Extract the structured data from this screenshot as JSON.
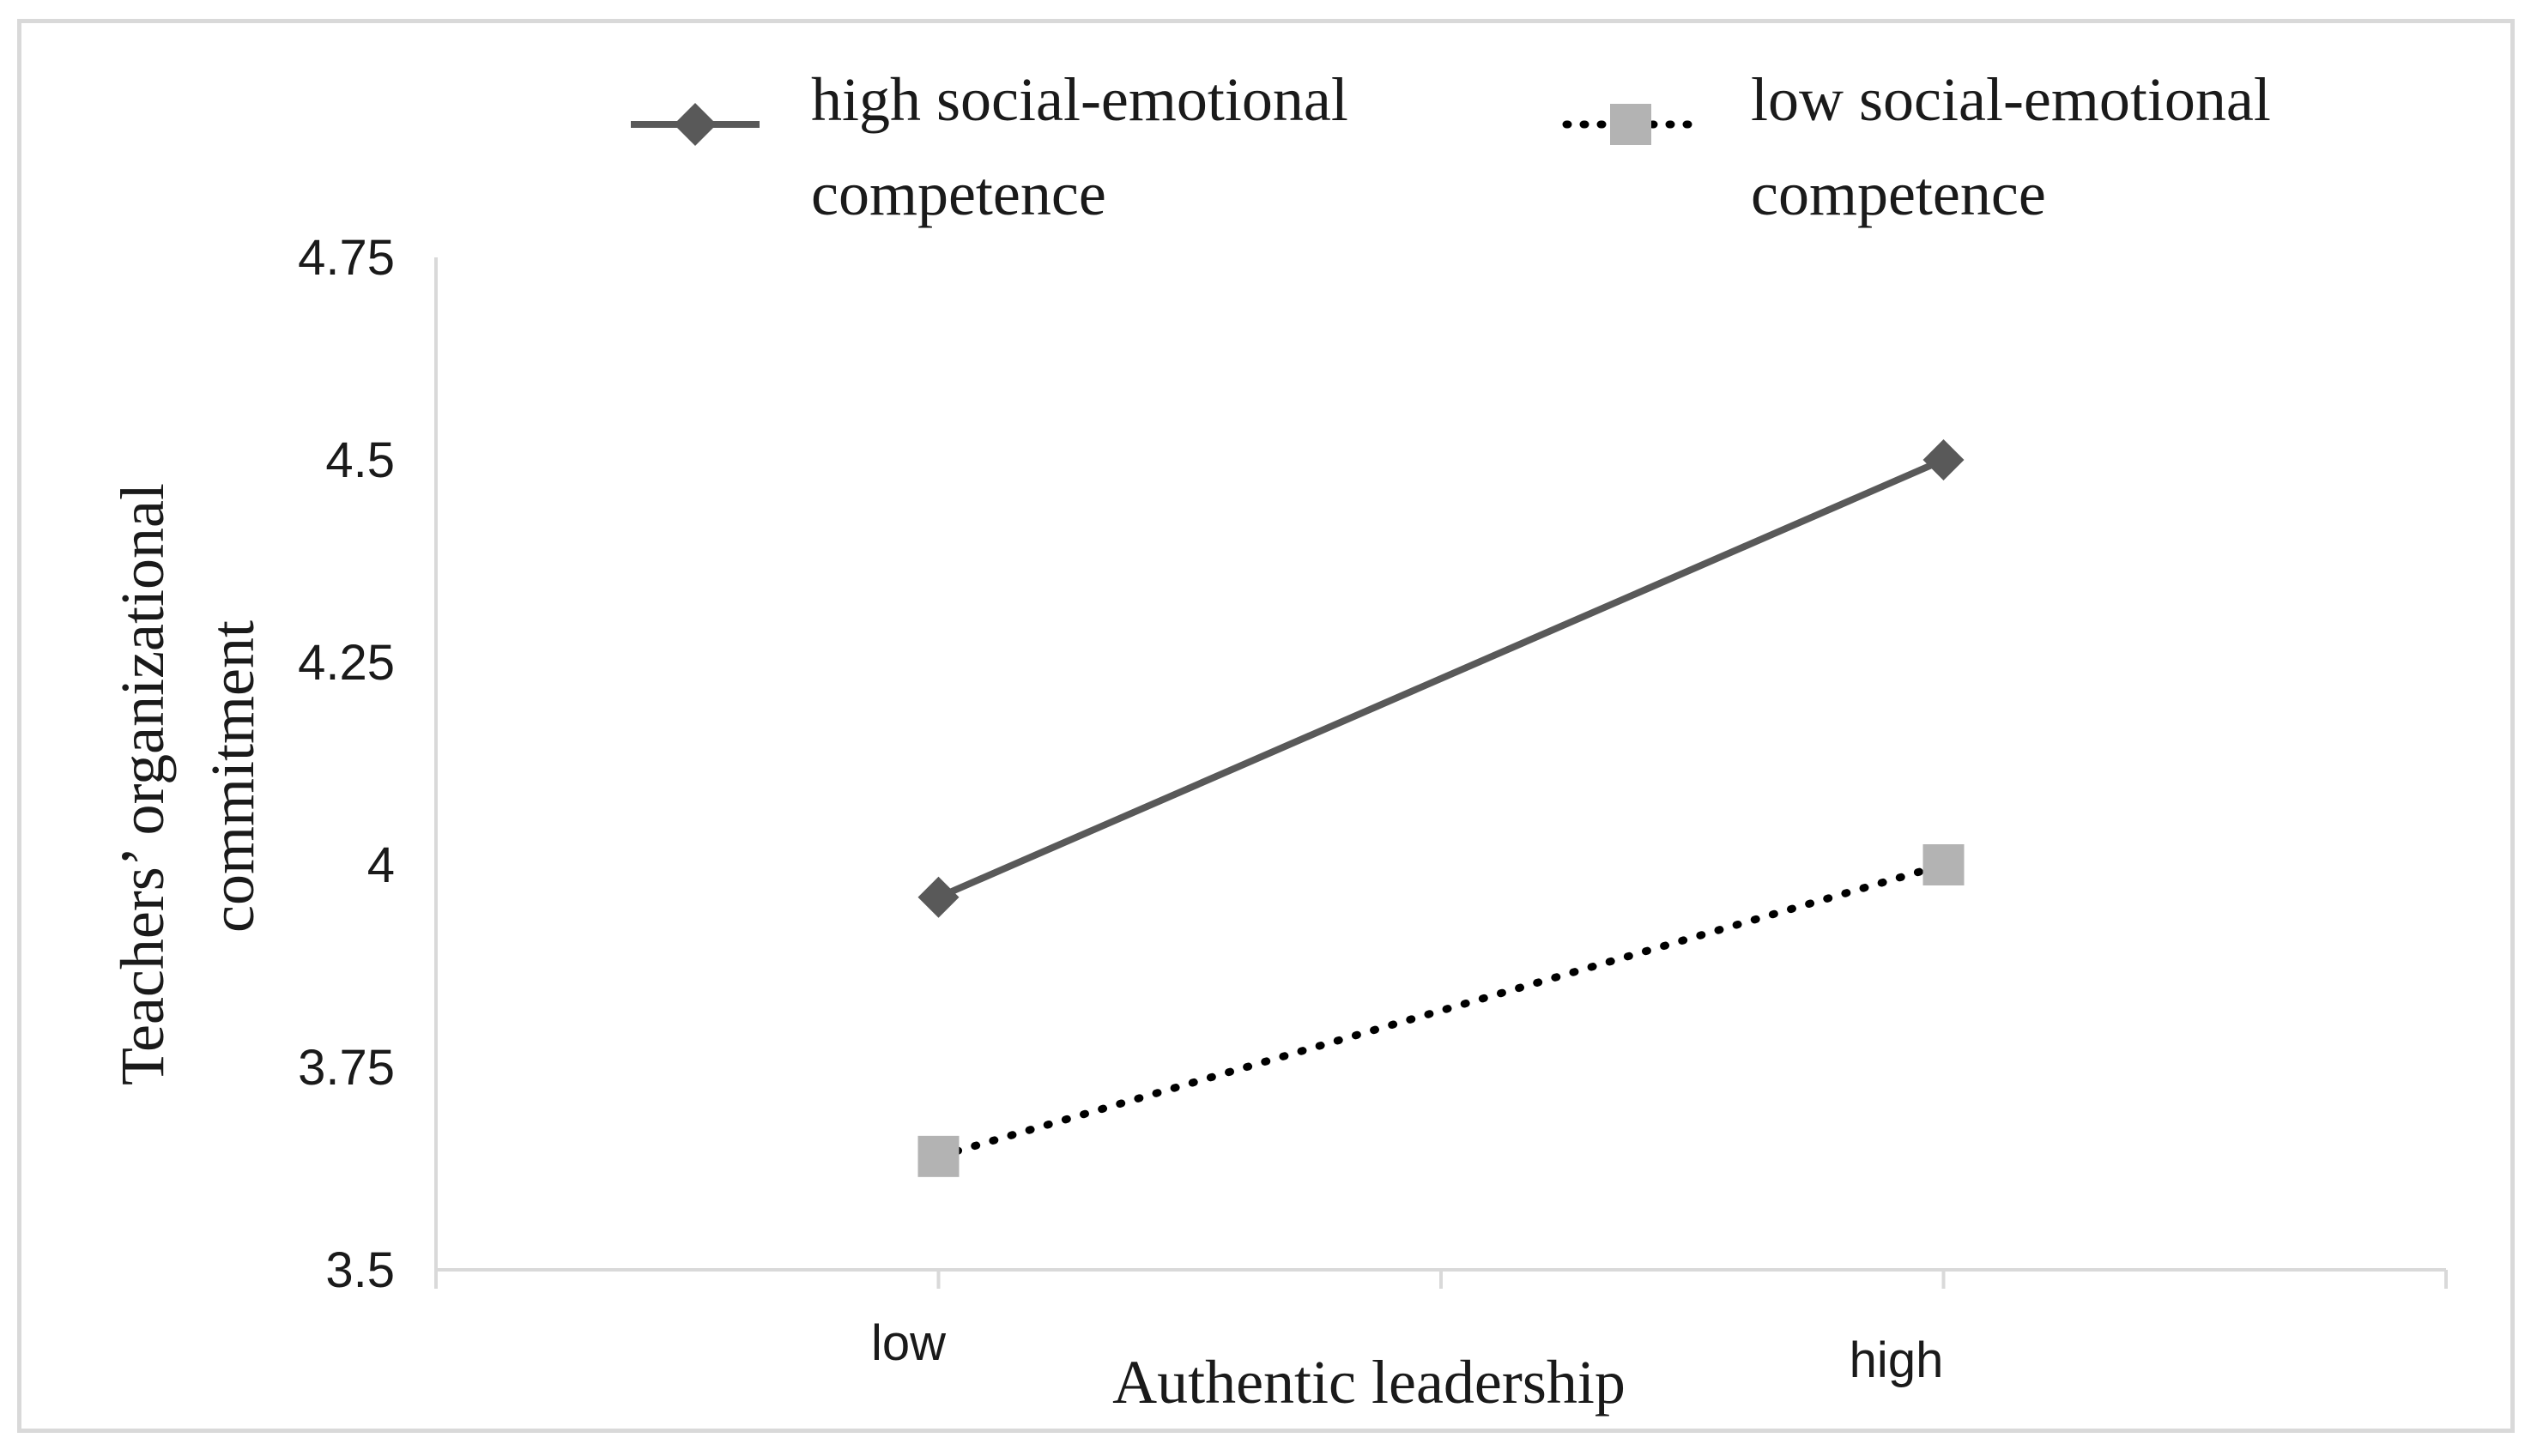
{
  "chart_data": {
    "type": "line",
    "xlabel": "Authentic leadership",
    "ylabel": [
      "Teachers’ organizational",
      "commitment"
    ],
    "categories": [
      "low",
      "high"
    ],
    "ylim": [
      3.5,
      4.75
    ],
    "yticks": [
      "3.5",
      "3.75",
      "4",
      "4.25",
      "4.5",
      "4.75"
    ],
    "grid": false,
    "legend_position": "top",
    "series": [
      {
        "name": [
          "high social-emotional",
          "competence"
        ],
        "values": [
          3.96,
          4.5
        ],
        "color": "#595959",
        "line_style": "solid",
        "marker": "diamond"
      },
      {
        "name": [
          "low social-emotional",
          "competence"
        ],
        "values": [
          3.64,
          4.0
        ],
        "color": "#000000",
        "marker_color": "#b3b3b3",
        "line_style": "dotted",
        "marker": "square"
      }
    ]
  }
}
